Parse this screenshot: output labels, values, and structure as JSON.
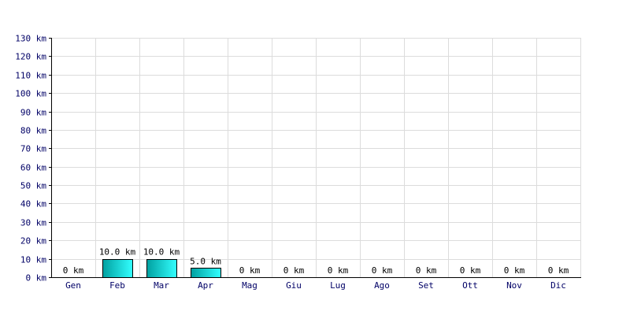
{
  "chart_data": {
    "type": "bar",
    "categories": [
      "Gen",
      "Feb",
      "Mar",
      "Apr",
      "Mag",
      "Giu",
      "Lug",
      "Ago",
      "Set",
      "Ott",
      "Nov",
      "Dic"
    ],
    "values": [
      0,
      10,
      10,
      5,
      0,
      0,
      0,
      0,
      0,
      0,
      0,
      0
    ],
    "data_labels": [
      "0 km",
      "10.0 km",
      "10.0 km",
      "5.0 km",
      "0 km",
      "0 km",
      "0 km",
      "0 km",
      "0 km",
      "0 km",
      "0 km",
      "0 km"
    ],
    "y_ticks": [
      0,
      10,
      20,
      30,
      40,
      50,
      60,
      70,
      80,
      90,
      100,
      110,
      120,
      130
    ],
    "y_tick_labels": [
      "0 km",
      "10 km",
      "20 km",
      "30 km",
      "40 km",
      "50 km",
      "60 km",
      "70 km",
      "80 km",
      "90 km",
      "100 km",
      "110 km",
      "120 km",
      "130 km"
    ],
    "ylim": [
      0,
      130
    ],
    "unit": "km",
    "grid": true,
    "title": "",
    "xlabel": "",
    "ylabel": "",
    "colors": {
      "bar_gradient_start": "#00a0a0",
      "bar_gradient_end": "#33ffff",
      "tick_text": "#000066",
      "grid": "#dcdcdc",
      "axis": "#000000"
    }
  }
}
